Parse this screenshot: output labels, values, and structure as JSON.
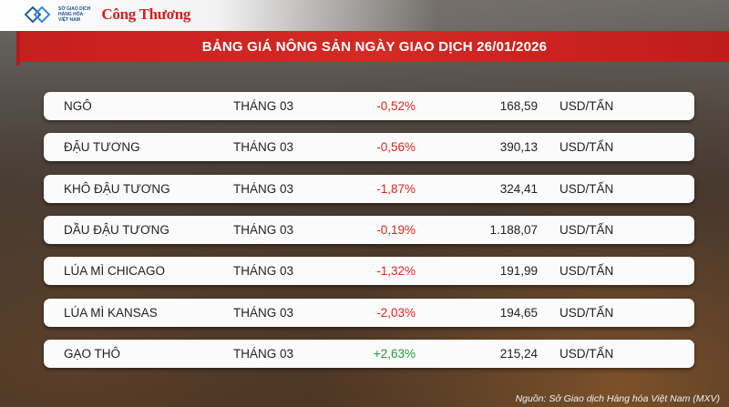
{
  "header": {
    "exchange_lines": [
      "SỞ GIAO DỊCH",
      "HÀNG HÓA",
      "VIỆT NAM"
    ],
    "brand": "Công Thương",
    "title": "BẢNG GIÁ NÔNG SẢN NGÀY GIAO DỊCH 26/01/2026"
  },
  "table": {
    "rows": [
      [
        "NGÔ",
        "THÁNG 03",
        "-0,52%",
        "168,59",
        "USD/TẤN"
      ],
      [
        "ĐẬU TƯƠNG",
        "THÁNG 03",
        "-0,56%",
        "390,13",
        "USD/TẤN"
      ],
      [
        "KHÔ ĐẬU TƯƠNG",
        "THÁNG 03",
        "-1,87%",
        "324,41",
        "USD/TẤN"
      ],
      [
        "DẦU ĐẬU TƯƠNG",
        "THÁNG 03",
        "-0,19%",
        "1.188,07",
        "USD/TẤN"
      ],
      [
        "LÚA MÌ CHICAGO",
        "THÁNG 03",
        "-1,32%",
        "191,99",
        "USD/TẤN"
      ],
      [
        "LÚA MÌ KANSAS",
        "THÁNG 03",
        "-2,03%",
        "194,65",
        "USD/TẤN"
      ],
      [
        "GẠO THÔ",
        "THÁNG 03",
        "+2,63%",
        "215,24",
        "USD/TẤN"
      ]
    ],
    "negative_color": "#e2231a",
    "positive_color": "#1f9a3a"
  },
  "footer": {
    "source": "Nguồn: Sở Giao dịch Hàng hóa Việt Nam (MXV)"
  }
}
